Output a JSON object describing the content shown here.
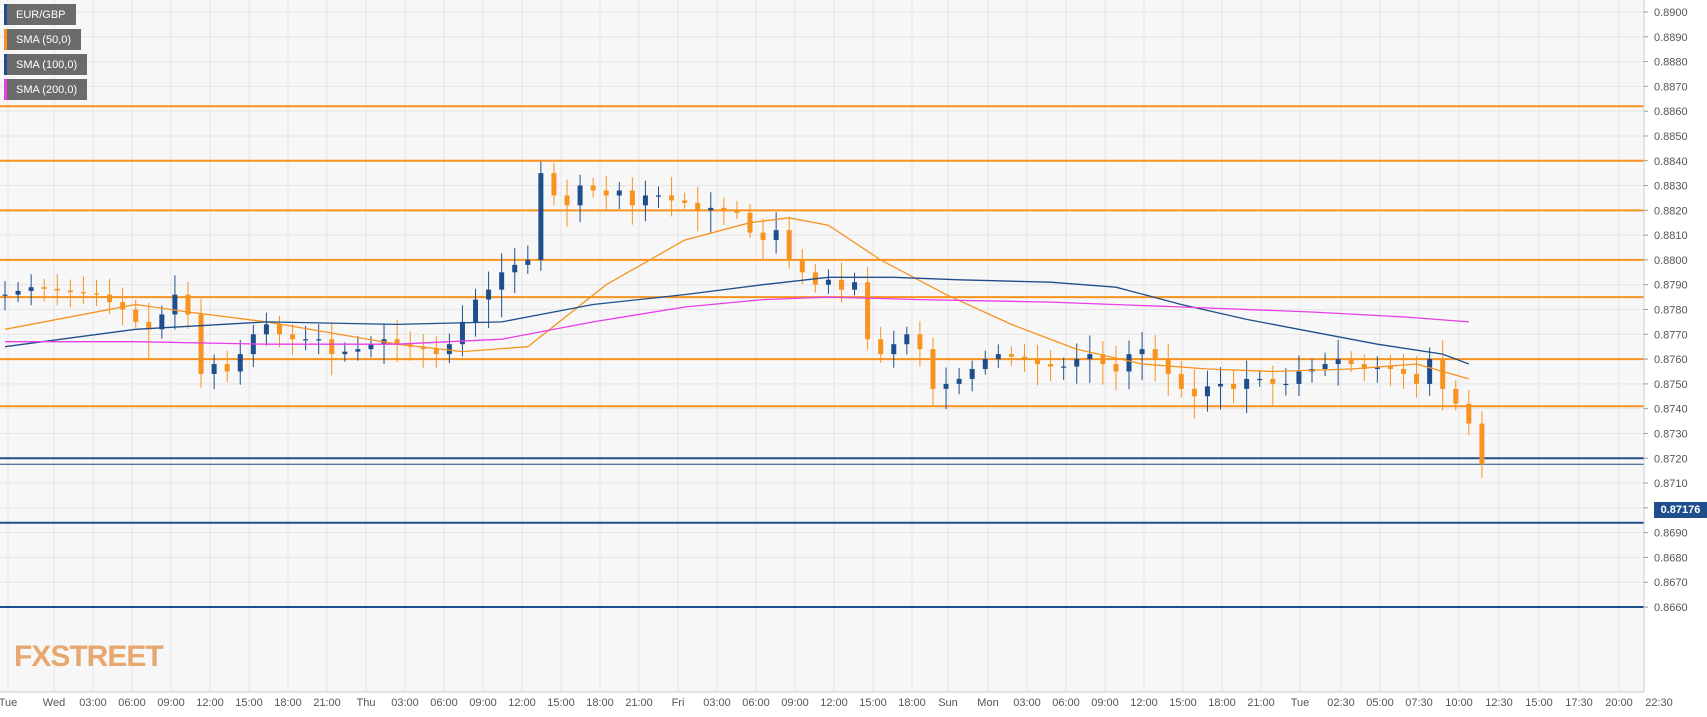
{
  "chart_data": {
    "type": "candlestick",
    "instrument": "EUR/GBP",
    "ylim": [
      0.8655,
      0.8903
    ],
    "y_ticks": [
      "0.8900",
      "0.8890",
      "0.8880",
      "0.8870",
      "0.8860",
      "0.8850",
      "0.8840",
      "0.8830",
      "0.8820",
      "0.8810",
      "0.8800",
      "0.8790",
      "0.8780",
      "0.8770",
      "0.8760",
      "0.8750",
      "0.8740",
      "0.8730",
      "0.8720",
      "0.8710",
      "0.8700",
      "0.8690",
      "0.8680",
      "0.8670",
      "0.8660"
    ],
    "x_ticks": [
      "Tue",
      "Wed",
      "03:00",
      "06:00",
      "09:00",
      "12:00",
      "15:00",
      "18:00",
      "21:00",
      "Thu",
      "03:00",
      "06:00",
      "09:00",
      "12:00",
      "15:00",
      "18:00",
      "21:00",
      "Fri",
      "03:00",
      "06:00",
      "09:00",
      "12:00",
      "15:00",
      "18:00",
      "Sun",
      "Mon",
      "03:00",
      "06:00",
      "09:00",
      "12:00",
      "15:00",
      "18:00",
      "21:00",
      "Tue",
      "02:30",
      "05:00",
      "07:30",
      "10:00",
      "12:30",
      "15:00",
      "17:30",
      "20:00",
      "22:30"
    ],
    "legend": [
      {
        "name": "EUR/GBP",
        "color": "#1f4e8c"
      },
      {
        "name": "SMA (50,0)",
        "color": "#f7931e"
      },
      {
        "name": "SMA (100,0)",
        "color": "#1f4e8c"
      },
      {
        "name": "SMA (200,0)",
        "color": "#e83ee8"
      }
    ],
    "resistance_levels": [
      0.8862,
      0.884,
      0.882,
      0.88,
      0.8785,
      0.876,
      0.8741
    ],
    "support_levels": [
      0.872,
      0.8694,
      0.866
    ],
    "last_price": "0.87176",
    "last_price_value": 0.87176,
    "colors": {
      "bull": "#1f4e8c",
      "bear": "#f7931e",
      "level_resistance": "#f7931e",
      "level_support": "#1f4e8c",
      "sma50": "#f7931e",
      "sma100": "#1f4e8c",
      "sma200": "#e83ee8"
    },
    "close_path": [
      [
        0,
        0.8786
      ],
      [
        2,
        0.8789
      ],
      [
        3.5,
        0.8788
      ],
      [
        5,
        0.8787
      ],
      [
        7,
        0.8786
      ],
      [
        8,
        0.8783
      ],
      [
        9,
        0.878
      ],
      [
        10,
        0.8775
      ],
      [
        11,
        0.8772
      ],
      [
        12,
        0.8778
      ],
      [
        13,
        0.8786
      ],
      [
        14,
        0.8778
      ],
      [
        14.5,
        0.875
      ],
      [
        15,
        0.8754
      ],
      [
        16,
        0.8758
      ],
      [
        17,
        0.8755
      ],
      [
        18,
        0.8762
      ],
      [
        19,
        0.877
      ],
      [
        20,
        0.8774
      ],
      [
        21,
        0.877
      ],
      [
        22,
        0.8768
      ],
      [
        24,
        0.8768
      ],
      [
        25,
        0.8762
      ],
      [
        26,
        0.8763
      ],
      [
        27,
        0.8764
      ],
      [
        28,
        0.8766
      ],
      [
        29,
        0.8768
      ],
      [
        30,
        0.8766
      ],
      [
        32,
        0.8764
      ],
      [
        33,
        0.8762
      ],
      [
        34,
        0.8766
      ],
      [
        35,
        0.8775
      ],
      [
        36,
        0.8784
      ],
      [
        37,
        0.8788
      ],
      [
        38,
        0.8795
      ],
      [
        39,
        0.8798
      ],
      [
        40,
        0.88
      ],
      [
        40.5,
        0.8832
      ],
      [
        41,
        0.8835
      ],
      [
        42,
        0.8826
      ],
      [
        43,
        0.8822
      ],
      [
        44,
        0.883
      ],
      [
        45,
        0.8828
      ],
      [
        46,
        0.8826
      ],
      [
        47,
        0.8828
      ],
      [
        48,
        0.8822
      ],
      [
        49,
        0.8826
      ],
      [
        50,
        0.8826
      ],
      [
        51,
        0.8824
      ],
      [
        52,
        0.8823
      ],
      [
        53,
        0.882
      ],
      [
        54,
        0.8821
      ],
      [
        56,
        0.8819
      ],
      [
        57,
        0.8811
      ],
      [
        58,
        0.8808
      ],
      [
        59,
        0.8812
      ],
      [
        60,
        0.88
      ],
      [
        61,
        0.8795
      ],
      [
        62,
        0.879
      ],
      [
        63,
        0.8792
      ],
      [
        64,
        0.8788
      ],
      [
        65,
        0.8791
      ],
      [
        65.5,
        0.8772
      ],
      [
        66,
        0.8768
      ],
      [
        67,
        0.8762
      ],
      [
        68,
        0.8766
      ],
      [
        69,
        0.877
      ],
      [
        70,
        0.8764
      ],
      [
        70.5,
        0.8746
      ],
      [
        71,
        0.8748
      ],
      [
        72,
        0.875
      ],
      [
        73,
        0.8752
      ],
      [
        74,
        0.8756
      ],
      [
        75,
        0.876
      ],
      [
        76,
        0.8762
      ],
      [
        77,
        0.8761
      ],
      [
        78,
        0.876
      ],
      [
        79,
        0.8758
      ],
      [
        80,
        0.8757
      ],
      [
        81,
        0.8757
      ],
      [
        82,
        0.876
      ],
      [
        83,
        0.8762
      ],
      [
        84,
        0.8758
      ],
      [
        85,
        0.8755
      ],
      [
        86,
        0.8762
      ],
      [
        87,
        0.8764
      ],
      [
        88,
        0.876
      ],
      [
        89,
        0.8754
      ],
      [
        90,
        0.8748
      ],
      [
        91,
        0.8745
      ],
      [
        92,
        0.8749
      ],
      [
        93,
        0.875
      ],
      [
        94,
        0.8748
      ],
      [
        95,
        0.8752
      ],
      [
        96,
        0.8752
      ],
      [
        97,
        0.875
      ],
      [
        98,
        0.875
      ],
      [
        99,
        0.8755
      ],
      [
        100,
        0.8756
      ],
      [
        101,
        0.8758
      ],
      [
        102,
        0.876
      ],
      [
        103,
        0.8758
      ],
      [
        104,
        0.8756
      ],
      [
        105,
        0.8757
      ],
      [
        106,
        0.8756
      ],
      [
        107,
        0.8754
      ],
      [
        108,
        0.875
      ],
      [
        109,
        0.876
      ],
      [
        110,
        0.8748
      ],
      [
        111,
        0.8742
      ],
      [
        111.5,
        0.8735
      ],
      [
        112,
        0.8734
      ],
      [
        113,
        0.87176
      ]
    ],
    "sma50": [
      [
        0,
        0.8772
      ],
      [
        10,
        0.8782
      ],
      [
        14,
        0.8779
      ],
      [
        20,
        0.8775
      ],
      [
        30,
        0.8766
      ],
      [
        35,
        0.8763
      ],
      [
        40,
        0.8765
      ],
      [
        46,
        0.879
      ],
      [
        52,
        0.8808
      ],
      [
        57,
        0.8815
      ],
      [
        60,
        0.8817
      ],
      [
        63,
        0.8814
      ],
      [
        67,
        0.88
      ],
      [
        72,
        0.8786
      ],
      [
        77,
        0.8774
      ],
      [
        82,
        0.8764
      ],
      [
        87,
        0.8758
      ],
      [
        92,
        0.8756
      ],
      [
        97,
        0.8755
      ],
      [
        103,
        0.8756
      ],
      [
        108,
        0.8758
      ],
      [
        112,
        0.8752
      ]
    ],
    "sma100": [
      [
        0,
        0.8765
      ],
      [
        10,
        0.8772
      ],
      [
        20,
        0.8775
      ],
      [
        30,
        0.8774
      ],
      [
        38,
        0.8775
      ],
      [
        45,
        0.8782
      ],
      [
        52,
        0.8786
      ],
      [
        58,
        0.879
      ],
      [
        63,
        0.8793
      ],
      [
        68,
        0.8793
      ],
      [
        73,
        0.8792
      ],
      [
        80,
        0.8791
      ],
      [
        85,
        0.8789
      ],
      [
        90,
        0.8782
      ],
      [
        95,
        0.8776
      ],
      [
        100,
        0.8771
      ],
      [
        105,
        0.8766
      ],
      [
        110,
        0.8762
      ],
      [
        112,
        0.8758
      ]
    ],
    "sma200": [
      [
        0,
        0.8767
      ],
      [
        10,
        0.8767
      ],
      [
        20,
        0.8766
      ],
      [
        30,
        0.8766
      ],
      [
        38,
        0.8768
      ],
      [
        45,
        0.8775
      ],
      [
        52,
        0.8781
      ],
      [
        58,
        0.8784
      ],
      [
        63,
        0.8785
      ],
      [
        70,
        0.8784
      ],
      [
        80,
        0.8783
      ],
      [
        90,
        0.8781
      ],
      [
        100,
        0.8779
      ],
      [
        107,
        0.8777
      ],
      [
        112,
        0.8775
      ]
    ]
  },
  "watermark": "FXSTREET"
}
